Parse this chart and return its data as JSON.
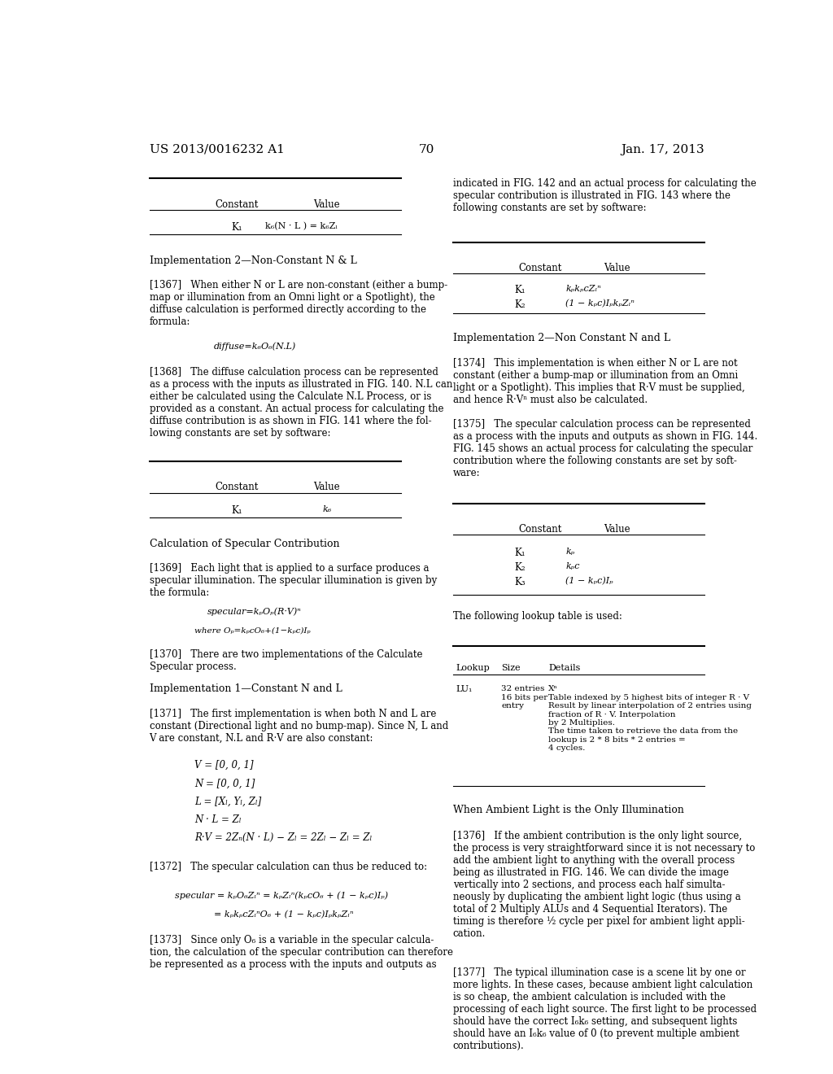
{
  "bg_color": "#ffffff",
  "page_width": 10.24,
  "page_height": 13.2,
  "left_header": "US 2013/0016232 A1",
  "right_header": "Jan. 17, 2013",
  "center_header": "70"
}
